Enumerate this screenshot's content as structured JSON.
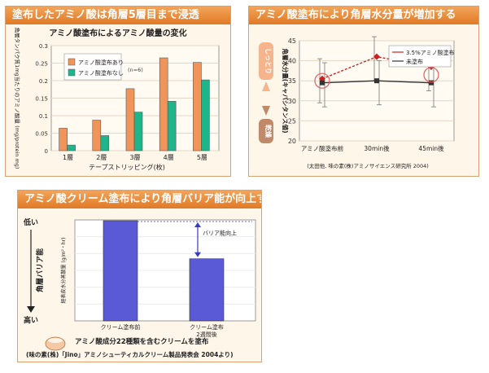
{
  "panels": {
    "p1_title": "塗布したアミノ酸は角層5層目まで浸透",
    "p2_title": "アミノ酸塗布により角層水分量が増加する",
    "p3_title": "アミノ酸クリーム塗布により角層バリア能が向上する"
  },
  "colors": {
    "accent": "#e98a3a",
    "series1": "#f0945a",
    "series2": "#1fb58a",
    "bar3": "#5a5ad6",
    "line_applied": "#cc1f1f",
    "line_none": "#333333"
  },
  "p2_side": {
    "up_label": "しっとり",
    "down_label": "乾燥"
  },
  "p2_source": "(太田他, 味の素(株)アミノサイエンス研究所 2004)",
  "p3_side": {
    "axis_label": "角層バリア能",
    "high": "高い",
    "low": "低い"
  },
  "p3_annotation": "バリア能向上",
  "p3_footer": {
    "caption": "アミノ酸成分22種類を含むクリームを塗布",
    "source": "(味の素(株)「Jino」アミノシューティカルクリーム製品発表会 2004より)"
  },
  "chart_data": [
    {
      "type": "bar",
      "title": "アミノ酸塗布によるアミノ酸量の変化",
      "xlabel": "テープストリッピング(枚)",
      "ylabel": "角層タンパク質1mg当たりのアミノ酸量 (mg/protein mg)",
      "note": "(n=6)",
      "categories": [
        "1層",
        "2層",
        "3層",
        "4層",
        "5層"
      ],
      "ylim": [
        0,
        0.3
      ],
      "series": [
        {
          "name": "アミノ酸塗布あり",
          "values": [
            0.064,
            0.087,
            0.177,
            0.265,
            0.252
          ]
        },
        {
          "name": "アミノ酸塗布なし",
          "values": [
            0.016,
            0.043,
            0.11,
            0.141,
            0.202
          ]
        }
      ]
    },
    {
      "type": "line",
      "ylabel": "角層水分量(キャパシタンス値)",
      "categories": [
        "アミノ酸塗布前",
        "30min後",
        "45min後"
      ],
      "ylim": [
        20,
        45
      ],
      "yticks": [
        20,
        25,
        30,
        35,
        40,
        45
      ],
      "series": [
        {
          "name": "3.5%アミノ酸塗布",
          "values": [
            35.5,
            41.0,
            38.5
          ]
        },
        {
          "name": "未塗布",
          "values": [
            34.5,
            35.0,
            34.5
          ]
        }
      ]
    },
    {
      "type": "bar",
      "ylabel": "経表皮水分蒸散量 (g/m²・hr)",
      "categories": [
        "クリーム塗布前",
        "クリーム塗布\n2週間後"
      ],
      "values": [
        1.0,
        0.62
      ]
    }
  ]
}
